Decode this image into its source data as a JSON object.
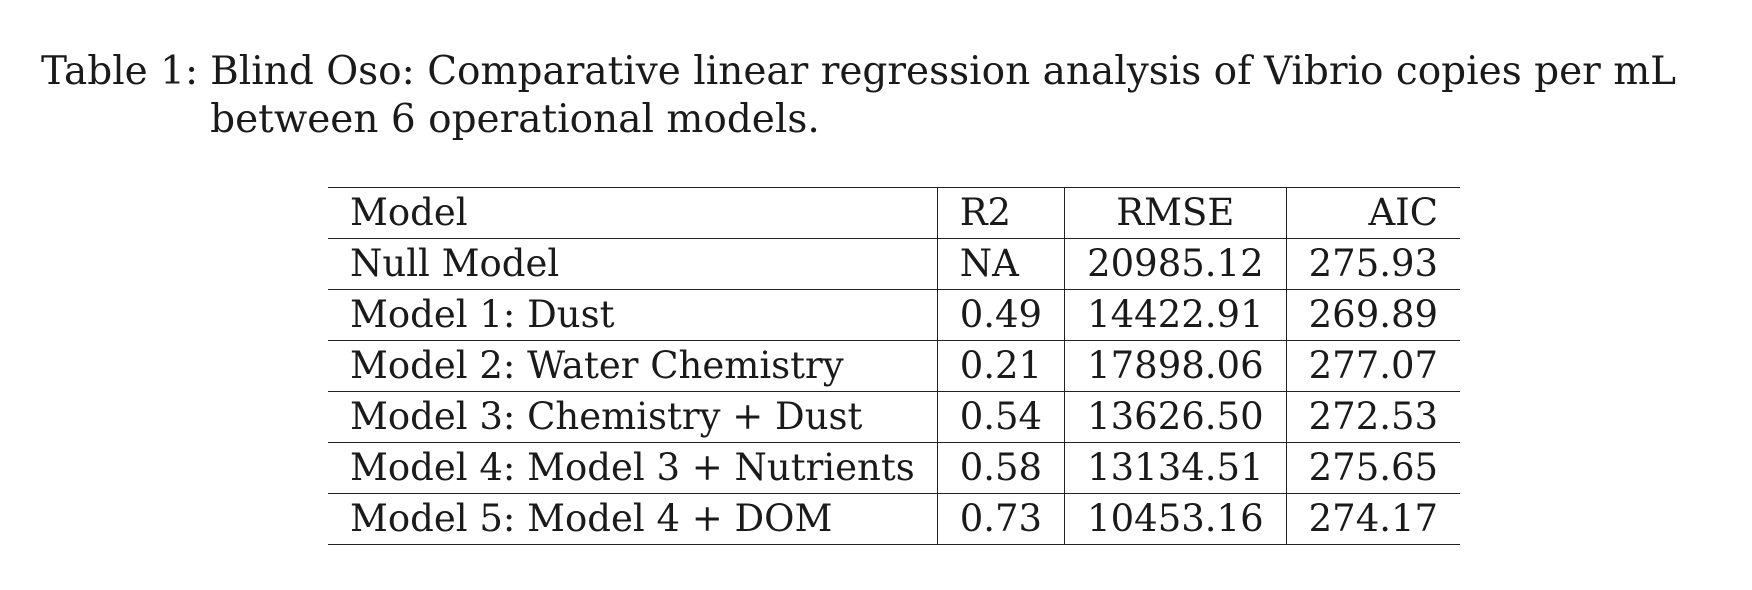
{
  "caption": {
    "label": "Table 1:",
    "text": "Blind Oso: Comparative linear regression analysis of Vibrio copies per mL between 6 operational models."
  },
  "table": {
    "headers": [
      "Model",
      "R2",
      "RMSE",
      "AIC"
    ],
    "rows": [
      [
        "Null Model",
        "NA",
        "20985.12",
        "275.93"
      ],
      [
        "Model 1: Dust",
        "0.49",
        "14422.91",
        "269.89"
      ],
      [
        "Model 2: Water Chemistry",
        "0.21",
        "17898.06",
        "277.07"
      ],
      [
        "Model 3: Chemistry + Dust",
        "0.54",
        "13626.50",
        "272.53"
      ],
      [
        "Model 4: Model 3 + Nutrients",
        "0.58",
        "13134.51",
        "275.65"
      ],
      [
        "Model 5: Model 4 + DOM",
        "0.73",
        "10453.16",
        "274.17"
      ]
    ]
  }
}
